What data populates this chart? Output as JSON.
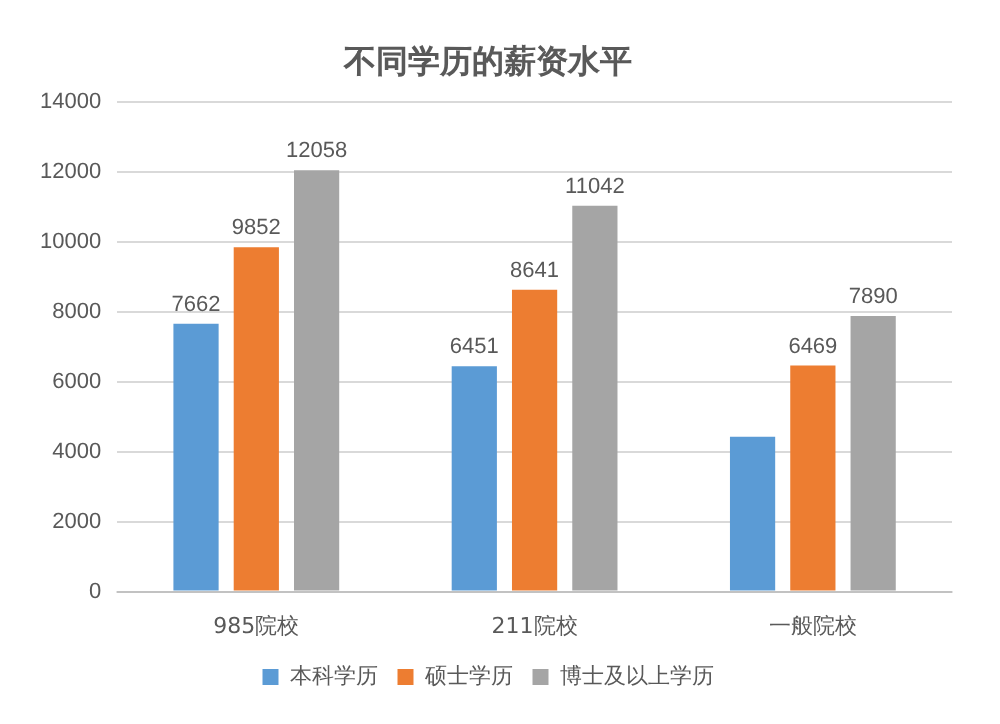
{
  "chart_data": {
    "type": "bar",
    "title": "不同学历的薪资水平",
    "categories": [
      "985院校",
      "211院校",
      "一般院校"
    ],
    "series": [
      {
        "name": "本科学历",
        "color": "#5b9bd5",
        "values": [
          7662,
          6451,
          4430
        ],
        "value_labels": [
          "7662",
          "6451",
          null
        ]
      },
      {
        "name": "硕士学历",
        "color": "#ed7d31",
        "values": [
          9852,
          8641,
          6469
        ],
        "value_labels": [
          "9852",
          "8641",
          "6469"
        ]
      },
      {
        "name": "博士及以上学历",
        "color": "#a5a5a5",
        "values": [
          12058,
          11042,
          7890
        ],
        "value_labels": [
          "12058",
          "11042",
          "7890"
        ]
      }
    ],
    "ylim": [
      0,
      14000
    ],
    "yticks": [
      0,
      2000,
      4000,
      6000,
      8000,
      10000,
      12000,
      14000
    ],
    "grid": "y",
    "legend": "bottom"
  }
}
